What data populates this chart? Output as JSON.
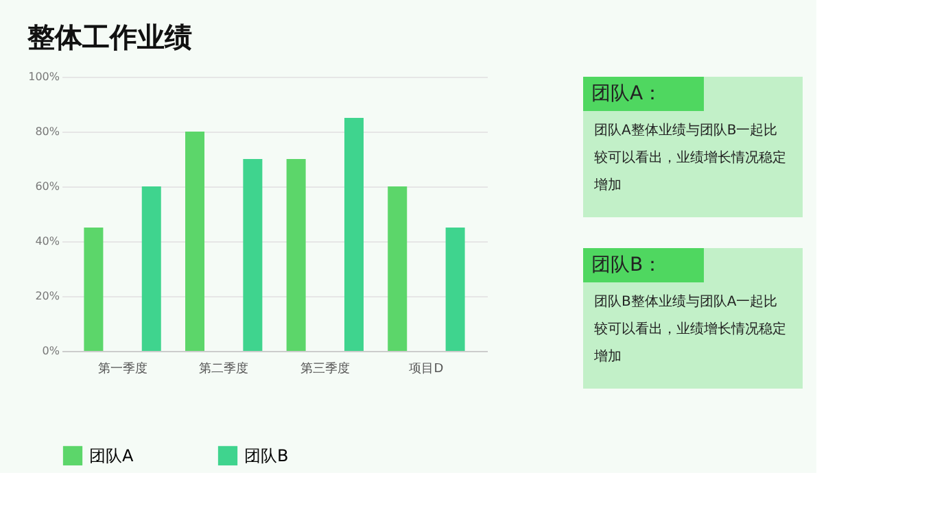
{
  "chart_data": {
    "type": "bar",
    "title": "整体工作业绩",
    "categories": [
      "第一季度",
      "第二季度",
      "第三季度",
      "项目D"
    ],
    "series": [
      {
        "name": "团队A",
        "color": "#5cd66a",
        "values": [
          45,
          80,
          70,
          60
        ]
      },
      {
        "name": "团队B",
        "color": "#3fd48e",
        "values": [
          60,
          70,
          85,
          45
        ]
      }
    ],
    "ylim": [
      0,
      100
    ],
    "yticks": [
      {
        "value": 0,
        "label": "0%"
      },
      {
        "value": 20,
        "label": "20%"
      },
      {
        "value": 40,
        "label": "40%"
      },
      {
        "value": 60,
        "label": "60%"
      },
      {
        "value": 80,
        "label": "80%"
      },
      {
        "value": 100,
        "label": "100%"
      }
    ],
    "grid": "y",
    "legend": "bottom",
    "annotations": [
      "团队A：",
      "团队A整体业绩与团队B一起比较可以看出，业绩增长情况稳定增加",
      "团队B：",
      "团队B整体业绩与团队A一起比较可以看出，业绩增长情况稳定增加"
    ]
  }
}
